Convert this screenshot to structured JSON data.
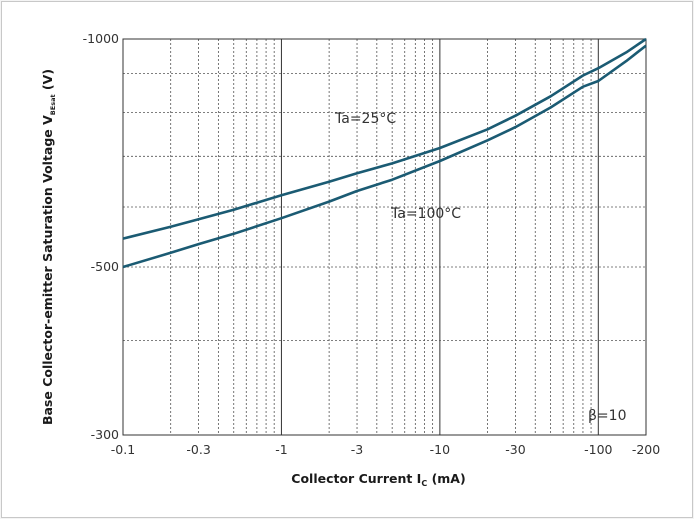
{
  "chart_data": {
    "type": "line",
    "x_scale": "log",
    "y_scale": "log",
    "xlim": [
      -0.1,
      -200
    ],
    "ylim": [
      -300,
      -1000
    ],
    "x_ticks": [
      -0.1,
      -0.3,
      -1,
      -3,
      -10,
      -30,
      -100,
      -200
    ],
    "x_tick_labels": [
      "-0.1",
      "-0.3",
      "-1",
      "-3",
      "-10",
      "-30",
      "-100",
      "-200"
    ],
    "y_ticks": [
      -300,
      -500,
      -1000
    ],
    "y_tick_labels": [
      "-300",
      "-500",
      "-1000"
    ],
    "x_axis_title": {
      "main": "Collector Current  I",
      "sub": "C",
      "unit": " (mA)"
    },
    "y_axis_title": {
      "main": "Base Collector-emitter Saturation Voltage  V",
      "sub": "BEsat",
      "unit": " (V)"
    },
    "grid": true,
    "line_color": "#1b5b73",
    "series": [
      {
        "name": "Ta=25°C",
        "x": [
          -0.1,
          -0.2,
          -0.3,
          -0.5,
          -1,
          -2,
          -3,
          -5,
          -10,
          -20,
          -30,
          -50,
          -80,
          -100,
          -150,
          -200
        ],
        "y": [
          -545,
          -565,
          -578,
          -595,
          -622,
          -648,
          -665,
          -685,
          -718,
          -760,
          -792,
          -840,
          -895,
          -915,
          -960,
          -1000
        ]
      },
      {
        "name": "Ta=100°C",
        "x": [
          -0.1,
          -0.2,
          -0.3,
          -0.5,
          -1,
          -2,
          -3,
          -5,
          -10,
          -20,
          -30,
          -50,
          -80,
          -100,
          -150,
          -200
        ],
        "y": [
          -500,
          -522,
          -536,
          -553,
          -580,
          -610,
          -630,
          -652,
          -690,
          -735,
          -765,
          -812,
          -865,
          -880,
          -935,
          -980
        ]
      }
    ],
    "annotations": [
      "Ta=25°C",
      "Ta=100°C",
      "β=10"
    ]
  }
}
